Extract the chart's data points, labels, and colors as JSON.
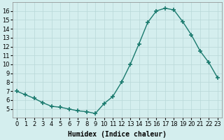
{
  "x": [
    0,
    1,
    2,
    3,
    4,
    5,
    6,
    7,
    8,
    9,
    10,
    11,
    12,
    13,
    14,
    15,
    16,
    17,
    18,
    19,
    20,
    21,
    22,
    23
  ],
  "y": [
    7.0,
    6.6,
    6.2,
    5.7,
    5.3,
    5.2,
    5.0,
    4.8,
    4.7,
    4.5,
    5.6,
    6.4,
    8.0,
    10.0,
    12.3,
    14.7,
    16.0,
    16.3,
    16.1,
    14.8,
    13.3,
    11.5,
    10.2,
    8.5
  ],
  "line_color": "#1a7a6e",
  "marker": "+",
  "markersize": 4,
  "linewidth": 1.0,
  "markeredgewidth": 1.2,
  "xlabel": "Humidex (Indice chaleur)",
  "xlabel_fontsize": 7,
  "xlabel_bold": true,
  "ylim": [
    4,
    17
  ],
  "xlim": [
    -0.5,
    23.5
  ],
  "yticks": [
    5,
    6,
    7,
    8,
    9,
    10,
    11,
    12,
    13,
    14,
    15,
    16
  ],
  "xticks": [
    0,
    1,
    2,
    3,
    4,
    5,
    6,
    7,
    8,
    9,
    10,
    11,
    12,
    13,
    14,
    15,
    16,
    17,
    18,
    19,
    20,
    21,
    22,
    23
  ],
  "xtick_labels": [
    "0",
    "1",
    "2",
    "3",
    "4",
    "5",
    "6",
    "7",
    "8",
    "9",
    "10",
    "11",
    "12",
    "13",
    "14",
    "15",
    "16",
    "17",
    "18",
    "19",
    "20",
    "21",
    "22",
    "23"
  ],
  "grid_color": "#b8d8d8",
  "background_color": "#d4eeee",
  "tick_fontsize": 6
}
